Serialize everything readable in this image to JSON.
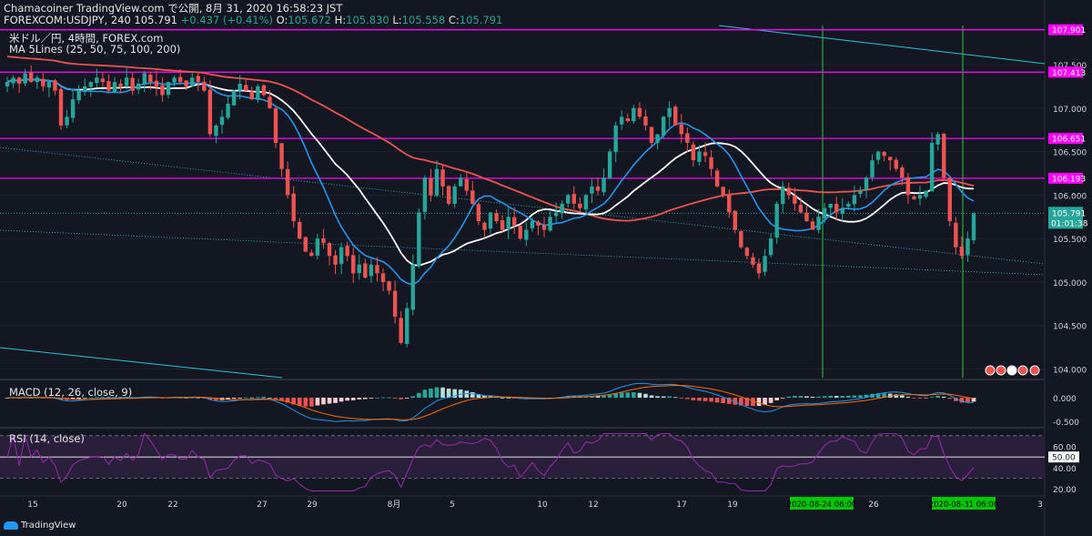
{
  "header": {
    "line1": "Chamacoiner TradingView.com で公開, 8月 31, 2020 16:58:23 JST",
    "symbol": "FOREXCOM:USDJPY, 240 105.791",
    "change": "+0.437 (+0.41%)",
    "o_label": "O:",
    "o": "105.672",
    "h_label": "H:",
    "h": "105.830",
    "l_label": "L:",
    "l": "105.558",
    "c_label": "C:",
    "c": "105.791"
  },
  "legend": {
    "main": "米ドル／円, 4時間, FOREX.com",
    "ma": "MA 5Lines (25, 50, 75, 100, 200)",
    "macd": "MACD (12, 26, close, 9)",
    "rsi": "RSI (14, close)"
  },
  "branding": "TradingView",
  "colors": {
    "background": "#131722",
    "up": "#26a69a",
    "down": "#ef5350",
    "level": "#ff00ff",
    "ma_white": "#ffffff",
    "ma_red": "#ef5350",
    "ma_blue": "#2196f3",
    "vertical": "#2ecc40",
    "trend": "#26c6da",
    "rsi": "#9c27b0"
  },
  "chart_data": [
    {
      "type": "candlestick",
      "pane": "price",
      "ylim": [
        103.9,
        107.95
      ],
      "y_ticks": [
        "107.500",
        "107.000",
        "106.500",
        "106.000",
        "105.500",
        "105.000",
        "104.500",
        "104.000"
      ],
      "x_ticks": [
        "15",
        "20",
        "22",
        "27",
        "29",
        "8月",
        "5",
        "10",
        "12",
        "17",
        "19",
        "26",
        "3"
      ],
      "level_labels": [
        "107.901",
        "107.413",
        "106.651",
        "106.193"
      ],
      "levels": [
        107.901,
        107.413,
        106.651,
        106.193
      ],
      "price_label": "105.791",
      "countdown_label": "01:01:38",
      "last_price": 105.791,
      "vertical_line_labels": [
        "2020-08-24  06:00",
        "2020-08-31  06:00"
      ],
      "closes": [
        107.3,
        107.35,
        107.28,
        107.4,
        107.3,
        107.35,
        107.25,
        107.3,
        107.2,
        106.8,
        106.9,
        107.1,
        107.2,
        107.25,
        107.3,
        107.35,
        107.3,
        107.2,
        107.3,
        107.25,
        107.35,
        107.2,
        107.28,
        107.4,
        107.3,
        107.25,
        107.15,
        107.3,
        107.35,
        107.3,
        107.25,
        107.35,
        107.3,
        107.2,
        106.7,
        106.8,
        106.9,
        107.05,
        107.2,
        107.28,
        107.2,
        107.1,
        107.25,
        107.15,
        107.0,
        106.6,
        106.3,
        106.0,
        105.7,
        105.5,
        105.35,
        105.3,
        105.5,
        105.45,
        105.3,
        105.2,
        105.4,
        105.3,
        105.1,
        105.2,
        105.05,
        105.2,
        105.1,
        105.0,
        104.9,
        104.6,
        104.3,
        104.7,
        105.2,
        105.8,
        106.2,
        106.0,
        106.3,
        106.1,
        105.9,
        106.1,
        106.2,
        106.05,
        105.9,
        105.7,
        105.6,
        105.8,
        105.7,
        105.6,
        105.75,
        105.65,
        105.5,
        105.6,
        105.7,
        105.65,
        105.6,
        105.75,
        105.8,
        105.9,
        106.0,
        105.9,
        105.85,
        106.0,
        106.1,
        106.05,
        106.2,
        106.5,
        106.8,
        106.9,
        106.85,
        107.0,
        106.9,
        106.8,
        106.6,
        106.7,
        106.9,
        107.0,
        106.8,
        106.7,
        106.6,
        106.4,
        106.5,
        106.45,
        106.3,
        106.1,
        106.0,
        105.8,
        105.6,
        105.4,
        105.3,
        105.2,
        105.1,
        105.3,
        105.5,
        105.9,
        106.1,
        106.0,
        105.9,
        105.8,
        105.7,
        105.6,
        105.75,
        105.85,
        105.9,
        105.8,
        105.85,
        105.9,
        106.0,
        106.05,
        106.2,
        106.4,
        106.5,
        106.45,
        106.4,
        106.3,
        106.2,
        106.0,
        105.95,
        106.0,
        106.05,
        106.6,
        106.7,
        106.2,
        105.7,
        105.4,
        105.3,
        105.5,
        105.79
      ]
    },
    {
      "type": "bar",
      "pane": "macd",
      "y_ticks": [
        "0.000",
        "-0.500"
      ],
      "ylim": [
        -0.6,
        0.35
      ]
    },
    {
      "type": "line",
      "pane": "rsi",
      "y_ticks": [
        "60.00",
        "40.00",
        "20.00"
      ],
      "rsi_label": "50.00",
      "ylim": [
        15,
        75
      ]
    }
  ]
}
